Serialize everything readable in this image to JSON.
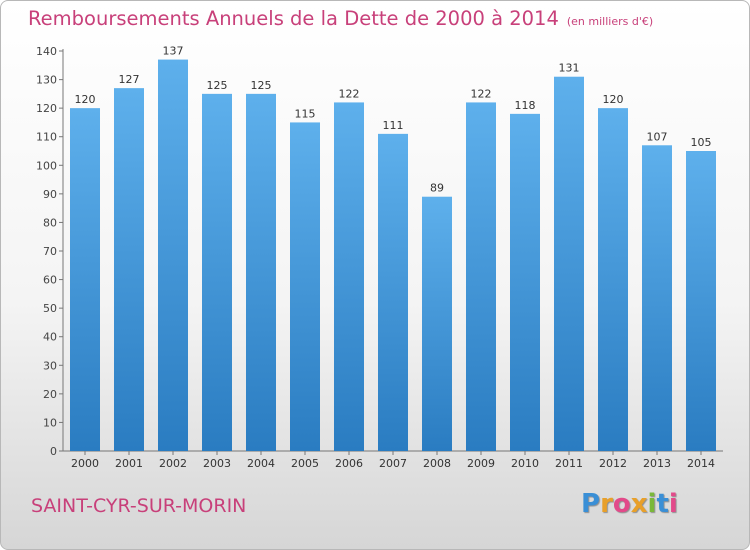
{
  "header": {
    "title": "Remboursements Annuels de la Dette de 2000 à 2014",
    "unit": "(en milliers d'€)"
  },
  "footer": {
    "city": "SAINT-CYR-SUR-MORIN",
    "logo": "Proxiti"
  },
  "colors": {
    "title": "#c8407a",
    "bar_top": "#5eb0ec",
    "bar_bottom": "#2a7cc1",
    "logo_letters": [
      "#3a8fd6",
      "#e8a02a",
      "#e24a8a",
      "#e8a02a",
      "#7ab83a",
      "#3a8fd6",
      "#e24a8a"
    ]
  },
  "chart_data": {
    "type": "bar",
    "categories": [
      "2000",
      "2001",
      "2002",
      "2003",
      "2004",
      "2005",
      "2006",
      "2007",
      "2008",
      "2009",
      "2010",
      "2011",
      "2012",
      "2013",
      "2014"
    ],
    "values": [
      120,
      127,
      137,
      125,
      125,
      115,
      122,
      111,
      89,
      122,
      118,
      131,
      120,
      107,
      105
    ],
    "title": "Remboursements Annuels de la Dette de 2000 à 2014",
    "subtitle": "(en milliers d'€)",
    "xlabel": "",
    "ylabel": "",
    "ylim": [
      0,
      140
    ],
    "yticks": [
      0,
      10,
      20,
      30,
      40,
      50,
      60,
      70,
      80,
      90,
      100,
      110,
      120,
      130,
      140
    ],
    "grid": false,
    "data_labels": true
  }
}
